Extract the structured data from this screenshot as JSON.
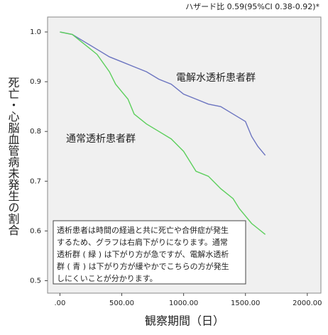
{
  "chart_data": {
    "type": "line",
    "subtitle": "ハザード比 0.59(95%CI 0.38-0.92)*",
    "y_label": "死亡・心脳血管病未発生の割合",
    "x_label": "観察期間（日）",
    "annotations": [
      "電解水透析患者群",
      "通常透析患者群"
    ],
    "note": [
      "透析患者は時間の経過と共に死亡や合併症が発生",
      "するため、グラフは右肩下がりになります。通常",
      "透析群 ( 緑 ) は下がり方が急ですが、電解水透析",
      "群 ( 青 ) は下がり方が緩やかでこちらの方が発生",
      "しにくいことが分かります。"
    ],
    "xlim": [
      -100,
      2110
    ],
    "ylim": [
      0.475,
      1.03
    ],
    "xticks": [
      {
        "value": 0,
        "label": ".00"
      },
      {
        "value": 500,
        "label": "500.00"
      },
      {
        "value": 1000,
        "label": "1000.00"
      },
      {
        "value": 1500,
        "label": "1500.00"
      },
      {
        "value": 2000,
        "label": "2000.00"
      }
    ],
    "yticks": [
      0.5,
      0.6,
      0.7,
      0.8,
      0.9,
      {
        "value": 1,
        "label": "1.0"
      }
    ],
    "series": [
      {
        "color": "#6b74c0",
        "x": [
          0,
          100,
          200,
          300,
          400,
          500,
          600,
          700,
          800,
          900,
          1000,
          1100,
          1200,
          1300,
          1400,
          1500,
          1550,
          1600,
          1660
        ],
        "values": [
          1,
          0.995,
          0.98,
          0.965,
          0.95,
          0.94,
          0.93,
          0.92,
          0.905,
          0.895,
          0.875,
          0.865,
          0.855,
          0.85,
          0.835,
          0.82,
          0.79,
          0.77,
          0.752
        ]
      },
      {
        "color": "#5ccf5c",
        "x": [
          0,
          100,
          200,
          300,
          400,
          450,
          500,
          550,
          600,
          650,
          700,
          800,
          900,
          1000,
          1050,
          1100,
          1200,
          1300,
          1400,
          1450,
          1500,
          1550,
          1600,
          1660
        ],
        "values": [
          1,
          0.995,
          0.975,
          0.955,
          0.92,
          0.895,
          0.88,
          0.865,
          0.835,
          0.825,
          0.815,
          0.8,
          0.785,
          0.76,
          0.74,
          0.72,
          0.71,
          0.685,
          0.665,
          0.645,
          0.63,
          0.615,
          0.605,
          0.593
        ]
      }
    ]
  }
}
